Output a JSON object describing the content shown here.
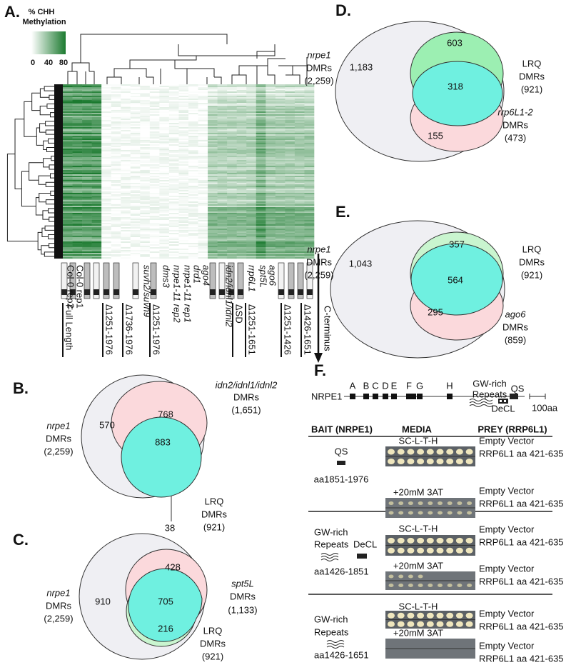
{
  "panel_a": {
    "label": "A.",
    "legend_title": [
      "% CHH",
      "Methylation"
    ],
    "legend_ticks": [
      "0",
      "40",
      "80"
    ],
    "samples": [
      "Col-0 rep2",
      "Col-0 rep1",
      "suvh2/suvh9",
      "dms3",
      "nrpe1-11 rep2",
      "nrpe1-11 rep1",
      "drd1",
      "ago4",
      "idn2/idnl1/idnl2",
      "rrp6L1",
      "spt5L",
      "ago6"
    ],
    "constructs": [
      "Full Length",
      "Δ1251-1976",
      "Δ1736-1976",
      "Δ1251-1976",
      "ΔSD",
      "Δ1251-1651",
      "Δ1251-1426",
      "Δ1426-1651"
    ],
    "arrow_label": "C-terminus"
  },
  "panel_b": {
    "label": "B.",
    "sets": [
      {
        "name": "nrpe1",
        "unit": "DMRs",
        "count": "(2,259)"
      },
      {
        "name": "idn2/idnl1/idnl2",
        "unit": "DMRs",
        "count": "(1,651)"
      },
      {
        "name": "LRQ",
        "unit": "DMRs",
        "count": "(921)"
      }
    ],
    "regions": [
      "570",
      "768",
      "883",
      "38"
    ]
  },
  "panel_c": {
    "label": "C.",
    "sets": [
      {
        "name": "nrpe1",
        "unit": "DMRs",
        "count": "(2,259)"
      },
      {
        "name": "spt5L",
        "unit": "DMRs",
        "count": "(1,133)"
      },
      {
        "name": "LRQ",
        "unit": "DMRs",
        "count": "(921)"
      }
    ],
    "regions": [
      "910",
      "428",
      "705",
      "216"
    ]
  },
  "panel_d": {
    "label": "D.",
    "sets": [
      {
        "name": "nrpe1",
        "unit": "DMRs",
        "count": "(2,259)"
      },
      {
        "name": "LRQ",
        "unit": "DMRs",
        "count": "(921)"
      },
      {
        "name": "rrp6L1-2",
        "unit": "DMRs",
        "count": "(473)"
      }
    ],
    "regions": [
      "1,183",
      "603",
      "318",
      "155"
    ]
  },
  "panel_e": {
    "label": "E.",
    "sets": [
      {
        "name": "nrpe1",
        "unit": "DMRs",
        "count": "(2,259)"
      },
      {
        "name": "LRQ",
        "unit": "DMRs",
        "count": "(921)"
      },
      {
        "name": "ago6",
        "unit": "DMRs",
        "count": "(859)"
      }
    ],
    "regions": [
      "1,043",
      "357",
      "564",
      "295"
    ]
  },
  "panel_f": {
    "label": "F.",
    "protein": "NRPE1",
    "domains": [
      "A",
      "B",
      "C",
      "D",
      "E",
      "F",
      "G",
      "H"
    ],
    "gw_rich": [
      "GW-rich",
      "Repeats"
    ],
    "decl": "DeCL",
    "qs": "QS",
    "scale": "100aa",
    "headers": [
      "BAIT (NRPE1)",
      "MEDIA",
      "PREY (RRP6L1)"
    ],
    "rows": [
      {
        "bait": [
          "QS"
        ],
        "bait_range": "aa1851-1976",
        "media": [
          "SC-L-T-H",
          "+20mM 3AT"
        ],
        "prey": [
          [
            "Empty Vector",
            "RRP6L1 aa 421-635"
          ],
          [
            "Empty Vector",
            "RRP6L1 aa 421-635"
          ]
        ]
      },
      {
        "bait": [
          "GW-rich",
          "Repeats",
          "DeCL"
        ],
        "bait_range": "aa1426-1851",
        "media": [
          "SC-L-T-H",
          "+20mM 3AT"
        ],
        "prey": [
          [
            "Empty Vector",
            "RRP6L1 aa 421-635"
          ],
          [
            "Empty Vector",
            "RRP6L1 aa 421-635"
          ]
        ]
      },
      {
        "bait": [
          "GW-rich",
          "Repeats"
        ],
        "bait_range": "aa1426-1651",
        "media": [
          "SC-L-T-H",
          "+20mM 3AT"
        ],
        "prey": [
          [
            "Empty Vector",
            "RRP6L1 aa 421-635"
          ],
          [
            "Empty Vector",
            "RRP6L1 aa 421-635"
          ]
        ]
      }
    ]
  }
}
